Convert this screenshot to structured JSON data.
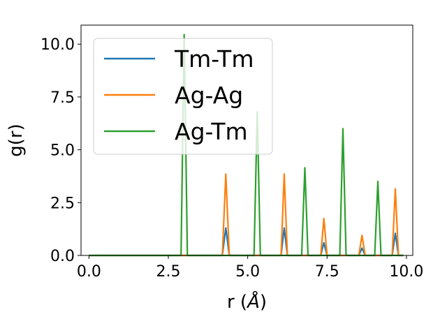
{
  "chart_data": {
    "type": "line",
    "title": "",
    "xlabel": "r (",
    "xlabel_unit": "Å",
    "xlabel_close": ")",
    "ylabel": "g(r)",
    "xlim": [
      -0.25,
      10.2
    ],
    "ylim": [
      0,
      10.9
    ],
    "xticks": [
      0.0,
      2.5,
      5.0,
      7.5,
      10.0
    ],
    "xtick_labels": [
      "0.0",
      "2.5",
      "5.0",
      "7.5",
      "10.0"
    ],
    "yticks": [
      0.0,
      2.5,
      5.0,
      7.5,
      10.0
    ],
    "ytick_labels": [
      "0.0",
      "2.5",
      "5.0",
      "7.5",
      "10.0"
    ],
    "grid": false,
    "legend_position": "top-left",
    "series": [
      {
        "name": "Tm-Tm",
        "color": "#1f77b4",
        "x": [
          0.0,
          4.2,
          4.31,
          4.42,
          6.05,
          6.15,
          6.25,
          7.3,
          7.4,
          7.5,
          8.5,
          8.6,
          8.7,
          9.55,
          9.65,
          9.75,
          9.9
        ],
        "y": [
          0.0,
          0.0,
          1.3,
          0.0,
          0.0,
          1.3,
          0.0,
          0.0,
          0.6,
          0.0,
          0.0,
          0.35,
          0.0,
          0.0,
          1.05,
          0.0,
          0.0
        ]
      },
      {
        "name": "Ag-Ag",
        "color": "#ff7f0e",
        "x": [
          0.0,
          4.2,
          4.31,
          4.42,
          6.05,
          6.15,
          6.25,
          7.3,
          7.4,
          7.5,
          8.5,
          8.6,
          8.7,
          9.55,
          9.65,
          9.75,
          9.9
        ],
        "y": [
          0.0,
          0.0,
          3.85,
          0.0,
          0.0,
          3.85,
          0.0,
          0.0,
          1.75,
          0.0,
          0.0,
          0.95,
          0.0,
          0.0,
          3.15,
          0.0,
          0.0
        ]
      },
      {
        "name": "Ag-Tm",
        "color": "#2ca02c",
        "x": [
          0.0,
          2.9,
          3.0,
          3.1,
          5.2,
          5.3,
          5.4,
          6.7,
          6.8,
          6.9,
          7.9,
          8.0,
          8.1,
          9.0,
          9.1,
          9.2,
          9.9
        ],
        "y": [
          0.0,
          0.0,
          10.45,
          0.0,
          0.0,
          6.8,
          0.0,
          0.0,
          4.15,
          0.0,
          0.0,
          6.0,
          0.0,
          0.0,
          3.5,
          0.0,
          0.0
        ]
      }
    ]
  }
}
